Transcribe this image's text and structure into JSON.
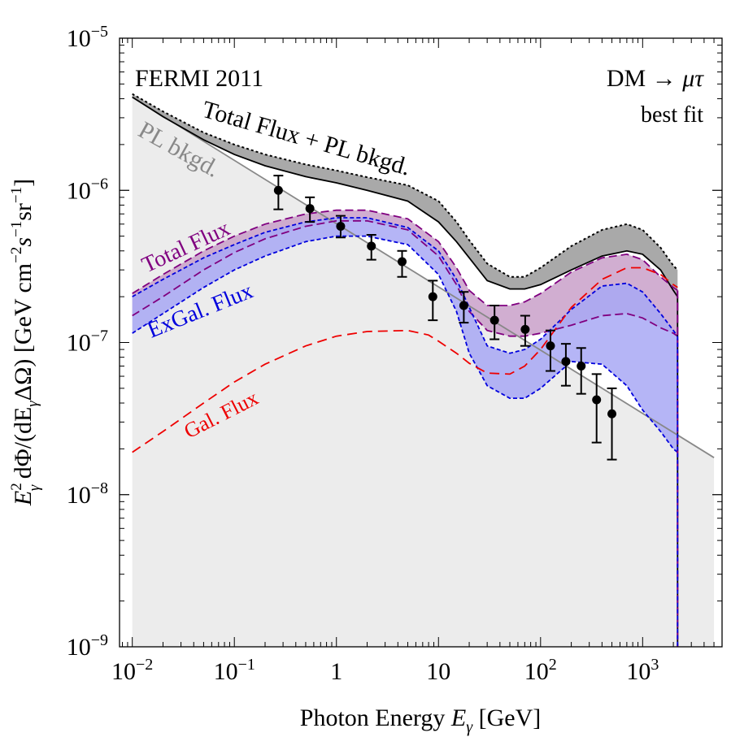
{
  "chart_data": {
    "type": "line",
    "title": "",
    "xlabel": "Photon Energy E_γ [GeV]",
    "ylabel": "E_γ^2 dΦ/(dE_γ ΔΩ) [GeV cm^-2 s^-1 sr^-1]",
    "xscale": "log",
    "yscale": "log",
    "xlim": [
      0.0075,
      6000
    ],
    "ylim": [
      1e-09,
      1e-05
    ],
    "x_ticks": [
      {
        "value": 0.01,
        "base": "10",
        "exp": "−2"
      },
      {
        "value": 0.1,
        "base": "10",
        "exp": "−1"
      },
      {
        "value": 1,
        "base": "1",
        "exp": ""
      },
      {
        "value": 10,
        "base": "10",
        "exp": ""
      },
      {
        "value": 100,
        "base": "10",
        "exp": "2"
      },
      {
        "value": 1000,
        "base": "10",
        "exp": "3"
      }
    ],
    "y_ticks": [
      {
        "value": 1e-05,
        "base": "10",
        "exp": "−5"
      },
      {
        "value": 1e-06,
        "base": "10",
        "exp": "−6"
      },
      {
        "value": 1e-07,
        "base": "10",
        "exp": "−7"
      },
      {
        "value": 1e-08,
        "base": "10",
        "exp": "−8"
      },
      {
        "value": 1e-09,
        "base": "10",
        "exp": "−9"
      }
    ],
    "annotations": {
      "dataset": "FERMI 2011",
      "channel_prefix": "DM → ",
      "channel_particles": "μτ",
      "fit": "best fit",
      "total_plus_bkg": "Total Flux + PL bkgd.",
      "pl_bkg": "PL bkgd.",
      "total_flux": "Total Flux",
      "exgal_flux": "ExGal. Flux",
      "gal_flux": "Gal. Flux"
    },
    "colors": {
      "background_fill": "#ececec",
      "pl_line": "#888888",
      "total_bkg_band": "#9a9a9a",
      "total_band": "#c9a0c9",
      "total_line": "#800080",
      "exgal_band": "#a8a8f5",
      "exgal_line": "#0000dd",
      "gal_line": "#ee0000",
      "points": "#000000"
    },
    "series": [
      {
        "name": "PL bkgd.",
        "x": [
          0.01,
          5000
        ],
        "y": [
          4.1e-06,
          1.75e-08
        ]
      },
      {
        "name": "Total Flux + PL bkgd. (upper)",
        "x": [
          0.01,
          0.02,
          0.05,
          0.1,
          0.2,
          0.5,
          1,
          2,
          5,
          10,
          15,
          20,
          30,
          50,
          70,
          100,
          200,
          400,
          700,
          1000,
          1500,
          2000,
          2200
        ],
        "y": [
          4.3e-06,
          3.3e-06,
          2.4e-06,
          2e-06,
          1.72e-06,
          1.48e-06,
          1.35e-06,
          1.22e-06,
          1.08e-06,
          8.5e-07,
          6.2e-07,
          4.7e-07,
          3.3e-07,
          2.7e-07,
          2.7e-07,
          3.1e-07,
          4.3e-07,
          5.5e-07,
          6e-07,
          5.5e-07,
          4.2e-07,
          3.2e-07,
          3e-07
        ]
      },
      {
        "name": "Total Flux + PL bkgd. (lower)",
        "x": [
          0.01,
          0.02,
          0.05,
          0.1,
          0.2,
          0.5,
          1,
          2,
          5,
          10,
          15,
          20,
          30,
          50,
          70,
          100,
          200,
          400,
          700,
          1000,
          1500,
          2000,
          2200
        ],
        "y": [
          4.1e-06,
          3.05e-06,
          2.15e-06,
          1.72e-06,
          1.45e-06,
          1.23e-06,
          1.12e-06,
          1e-06,
          8.5e-07,
          6.2e-07,
          4.6e-07,
          3.6e-07,
          2.55e-07,
          2.25e-07,
          2.25e-07,
          2.4e-07,
          3e-07,
          3.7e-07,
          4e-07,
          3.8e-07,
          3e-07,
          2.2e-07,
          2e-07
        ]
      },
      {
        "name": "Total Flux (upper)",
        "x": [
          0.01,
          0.02,
          0.05,
          0.1,
          0.2,
          0.5,
          1,
          2,
          5,
          10,
          15,
          20,
          30,
          50,
          70,
          100,
          200,
          400,
          700,
          1000,
          1500,
          2000,
          2200
        ],
        "y": [
          2.1e-07,
          2.8e-07,
          4e-07,
          5e-07,
          6e-07,
          7e-07,
          7.4e-07,
          7.4e-07,
          6.5e-07,
          4.6e-07,
          3.1e-07,
          2.2e-07,
          1.75e-07,
          1.75e-07,
          1.85e-07,
          2.1e-07,
          2.9e-07,
          3.6e-07,
          3.8e-07,
          3.5e-07,
          2.7e-07,
          2.3e-07,
          2.2e-07
        ]
      },
      {
        "name": "Total Flux (lower)",
        "x": [
          0.01,
          0.02,
          0.05,
          0.1,
          0.2,
          0.5,
          1,
          2,
          5,
          10,
          15,
          20,
          30,
          50,
          70,
          100,
          200,
          400,
          700,
          1000,
          1500,
          2000,
          2200
        ],
        "y": [
          1.5e-07,
          2e-07,
          3e-07,
          3.9e-07,
          4.8e-07,
          5.8e-07,
          6.3e-07,
          6.3e-07,
          5.5e-07,
          3.7e-07,
          2.4e-07,
          1.6e-07,
          1.2e-07,
          1.1e-07,
          1.1e-07,
          1.15e-07,
          1.3e-07,
          1.5e-07,
          1.55e-07,
          1.45e-07,
          1.25e-07,
          1.15e-07,
          1.1e-07
        ]
      },
      {
        "name": "ExGal. Flux (upper)",
        "x": [
          0.01,
          0.02,
          0.05,
          0.1,
          0.2,
          0.5,
          1,
          2,
          5,
          10,
          15,
          20,
          30,
          50,
          70,
          100,
          200,
          400,
          700,
          1000,
          1500,
          2000,
          2200
        ],
        "y": [
          2e-07,
          2.6e-07,
          3.6e-07,
          4.4e-07,
          5.3e-07,
          6.2e-07,
          6.6e-07,
          6.6e-07,
          5.7e-07,
          4e-07,
          2.6e-07,
          1.7e-07,
          9.5e-08,
          8.5e-08,
          9e-08,
          1.05e-07,
          1.65e-07,
          2.35e-07,
          2.45e-07,
          2.15e-07,
          1.55e-07,
          1.2e-07,
          1.1e-07
        ]
      },
      {
        "name": "ExGal. Flux (lower)",
        "x": [
          0.01,
          0.02,
          0.05,
          0.1,
          0.2,
          0.5,
          1,
          2,
          5,
          10,
          15,
          20,
          30,
          50,
          70,
          100,
          200,
          400,
          700,
          1000,
          1500,
          2000,
          2200
        ],
        "y": [
          1.15e-07,
          1.55e-07,
          2.3e-07,
          3e-07,
          3.7e-07,
          4.6e-07,
          5e-07,
          5e-07,
          4.4e-07,
          2.8e-07,
          1.6e-07,
          8.5e-08,
          5.2e-08,
          4.3e-08,
          4.3e-08,
          5e-08,
          7.5e-08,
          7.2e-08,
          5.2e-08,
          3.6e-08,
          2.6e-08,
          2e-08,
          1.9e-08
        ]
      },
      {
        "name": "Gal. Flux",
        "x": [
          0.01,
          0.02,
          0.05,
          0.1,
          0.2,
          0.5,
          1,
          2,
          5,
          8,
          10,
          15,
          20,
          30,
          50,
          70,
          100,
          200,
          400,
          700,
          1000,
          1500,
          2000,
          2200
        ],
        "y": [
          1.9e-08,
          2.6e-08,
          4e-08,
          5.5e-08,
          7.2e-08,
          9.5e-08,
          1.1e-07,
          1.18e-07,
          1.2e-07,
          1.12e-07,
          1.02e-07,
          8.5e-08,
          7.3e-08,
          6.3e-08,
          6.2e-08,
          7e-08,
          9e-08,
          1.7e-07,
          2.6e-07,
          3.1e-07,
          3.1e-07,
          2.8e-07,
          2.4e-07,
          2.3e-07
        ]
      }
    ],
    "points": [
      {
        "x": 0.27,
        "y": 1e-06,
        "lo": 7.5e-07,
        "hi": 1.25e-06
      },
      {
        "x": 0.55,
        "y": 7.6e-07,
        "lo": 6.2e-07,
        "hi": 9e-07
      },
      {
        "x": 1.1,
        "y": 5.8e-07,
        "lo": 4.9e-07,
        "hi": 6.8e-07
      },
      {
        "x": 2.2,
        "y": 4.3e-07,
        "lo": 3.5e-07,
        "hi": 5.1e-07
      },
      {
        "x": 4.4,
        "y": 3.4e-07,
        "lo": 2.7e-07,
        "hi": 4e-07
      },
      {
        "x": 8.8,
        "y": 2e-07,
        "lo": 1.4e-07,
        "hi": 2.55e-07
      },
      {
        "x": 17.7,
        "y": 1.75e-07,
        "lo": 1.35e-07,
        "hi": 2.15e-07
      },
      {
        "x": 35.4,
        "y": 1.4e-07,
        "lo": 1.05e-07,
        "hi": 1.75e-07
      },
      {
        "x": 70.7,
        "y": 1.22e-07,
        "lo": 9.5e-08,
        "hi": 1.5e-07
      },
      {
        "x": 125,
        "y": 9.5e-08,
        "lo": 6.5e-08,
        "hi": 1.2e-07
      },
      {
        "x": 177,
        "y": 7.5e-08,
        "lo": 5.2e-08,
        "hi": 9.8e-08
      },
      {
        "x": 250,
        "y": 7e-08,
        "lo": 4.6e-08,
        "hi": 9.2e-08
      },
      {
        "x": 354,
        "y": 4.2e-08,
        "lo": 2.2e-08,
        "hi": 6.2e-08
      },
      {
        "x": 500,
        "y": 3.4e-08,
        "lo": 1.7e-08,
        "hi": 5e-08
      }
    ]
  }
}
